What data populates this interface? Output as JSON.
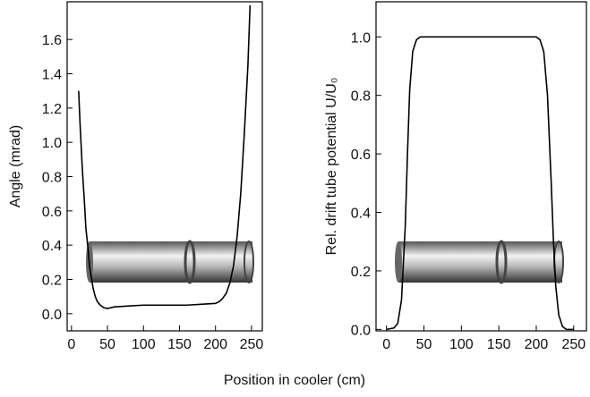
{
  "xlabel": "Position in cooler (cm)",
  "chart_data": [
    {
      "type": "line",
      "ylabel": "Angle (mrad)",
      "xlim": [
        -6,
        265
      ],
      "ylim": [
        -0.1,
        1.82
      ],
      "xticks": [
        0,
        50,
        100,
        150,
        200,
        250
      ],
      "yticks": [
        {
          "value": 0,
          "label": "0.0"
        },
        {
          "value": 0.2,
          "label": "0.2"
        },
        {
          "value": 0.4,
          "label": "0.4"
        },
        {
          "value": 0.6,
          "label": "0.6"
        },
        {
          "value": 0.8,
          "label": "0.8"
        },
        {
          "value": 1.0,
          "label": "1.0"
        },
        {
          "value": 1.2,
          "label": "1.2"
        },
        {
          "value": 1.4,
          "label": "1.4"
        },
        {
          "value": 1.6,
          "label": "1.6"
        }
      ],
      "x": [
        10,
        12,
        15,
        18,
        20,
        23,
        25,
        28,
        30,
        33,
        36,
        40,
        45,
        50,
        60,
        80,
        100,
        120,
        140,
        160,
        180,
        200,
        205,
        210,
        215,
        220,
        225,
        230,
        235,
        240,
        245,
        248
      ],
      "values": [
        1.3,
        1.1,
        0.85,
        0.65,
        0.5,
        0.38,
        0.28,
        0.2,
        0.15,
        0.1,
        0.07,
        0.05,
        0.035,
        0.03,
        0.04,
        0.045,
        0.05,
        0.05,
        0.05,
        0.05,
        0.055,
        0.06,
        0.07,
        0.09,
        0.12,
        0.18,
        0.28,
        0.45,
        0.7,
        1.05,
        1.45,
        1.8
      ],
      "color": "#000000"
    },
    {
      "type": "line",
      "ylabel": "Rel. drift tube potential U/U₀",
      "xlim": [
        -14,
        267
      ],
      "ylim": [
        -0.005,
        1.12
      ],
      "xticks": [
        0,
        50,
        100,
        150,
        200,
        250
      ],
      "yticks": [
        {
          "value": 0,
          "label": "0.0"
        },
        {
          "value": 0.2,
          "label": "0.2"
        },
        {
          "value": 0.4,
          "label": "0.4"
        },
        {
          "value": 0.6,
          "label": "0.6"
        },
        {
          "value": 0.8,
          "label": "0.8"
        },
        {
          "value": 1.0,
          "label": "1.0"
        }
      ],
      "x": [
        0,
        10,
        15,
        20,
        25,
        28,
        31,
        35,
        40,
        45,
        50,
        100,
        150,
        200,
        205,
        210,
        215,
        220,
        223,
        226,
        230,
        235,
        240,
        250
      ],
      "values": [
        0,
        0.005,
        0.02,
        0.1,
        0.35,
        0.6,
        0.82,
        0.95,
        0.99,
        1,
        1,
        1,
        1,
        1,
        0.99,
        0.95,
        0.8,
        0.5,
        0.3,
        0.15,
        0.05,
        0.01,
        0,
        0
      ],
      "color": "#000000"
    }
  ]
}
